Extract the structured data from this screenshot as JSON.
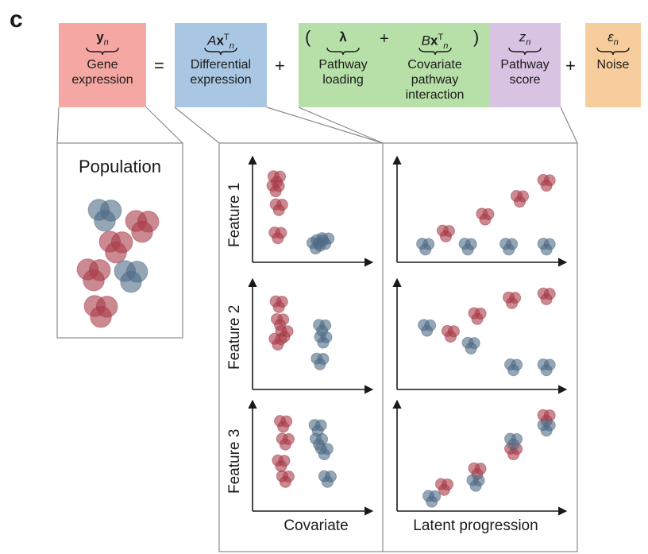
{
  "panel_label": "c",
  "equation": {
    "y": {
      "symbol": "y",
      "sub": "n",
      "label_lines": [
        "Gene",
        "expression"
      ],
      "color": "#f4a7a3"
    },
    "differential": {
      "symbol_pre": "A",
      "symbol": "x",
      "sup": "T",
      "sub": "n",
      "label_lines": [
        "Differential",
        "expression"
      ],
      "color": "#a9c7e3"
    },
    "pathway_loading": {
      "symbol": "λ",
      "label_lines": [
        "Pathway",
        "loading"
      ],
      "color": "#b7e0a8"
    },
    "covariate_interaction": {
      "symbol_pre": "B",
      "symbol": "x",
      "sup": "T",
      "sub": "n",
      "label_lines": [
        "Covariate",
        "pathway",
        "interaction"
      ],
      "color": "#b7e0a8"
    },
    "pathway_score": {
      "symbol": "z",
      "sub": "n",
      "label_lines": [
        "Pathway",
        "score"
      ],
      "color": "#d9c3e3"
    },
    "noise": {
      "symbol": "ε",
      "sub": "n",
      "label_lines": [
        "Noise"
      ],
      "color": "#f8cd9d"
    },
    "operators": {
      "equals": "=",
      "plus": "+",
      "open_paren": "(",
      "close_paren": ")"
    }
  },
  "population": {
    "title": "Population"
  },
  "plots": {
    "feature_labels": [
      "Feature 1",
      "Feature 2",
      "Feature 3"
    ],
    "x_label_left": "Covariate",
    "x_label_right": "Latent progression"
  },
  "colors": {
    "red_cell": "#a83a47",
    "blue_cell": "#4f6b85",
    "frame": "#8a8a8a"
  },
  "chart_data": [
    {
      "type": "scatter",
      "xlabel": "Covariate",
      "ylabel": "Feature 1",
      "series": [
        {
          "points": [
            [
              0.18,
              0.84
            ],
            [
              0.17,
              0.74
            ],
            [
              0.2,
              0.54
            ],
            [
              0.19,
              0.24
            ]
          ]
        },
        {
          "points": [
            [
              0.58,
              0.16
            ],
            [
              0.63,
              0.18
            ],
            [
              0.54,
              0.13
            ]
          ]
        }
      ]
    },
    {
      "type": "scatter",
      "xlabel": "Covariate",
      "ylabel": "Feature 2",
      "series": [
        {
          "points": [
            [
              0.2,
              0.82
            ],
            [
              0.21,
              0.64
            ],
            [
              0.25,
              0.52
            ],
            [
              0.19,
              0.44
            ]
          ]
        },
        {
          "points": [
            [
              0.6,
              0.58
            ],
            [
              0.61,
              0.46
            ],
            [
              0.58,
              0.24
            ]
          ]
        }
      ]
    },
    {
      "type": "scatter",
      "xlabel": "Covariate",
      "ylabel": "Feature 3",
      "series": [
        {
          "points": [
            [
              0.24,
              0.84
            ],
            [
              0.26,
              0.66
            ],
            [
              0.22,
              0.44
            ],
            [
              0.26,
              0.28
            ]
          ]
        },
        {
          "points": [
            [
              0.56,
              0.8
            ],
            [
              0.57,
              0.66
            ],
            [
              0.62,
              0.56
            ],
            [
              0.65,
              0.28
            ]
          ]
        }
      ]
    },
    {
      "type": "scatter",
      "xlabel": "Latent progression",
      "ylabel": "Feature 1",
      "series": [
        {
          "points": [
            [
              0.28,
              0.26
            ],
            [
              0.53,
              0.44
            ],
            [
              0.75,
              0.63
            ],
            [
              0.92,
              0.8
            ]
          ]
        },
        {
          "points": [
            [
              0.15,
              0.12
            ],
            [
              0.42,
              0.12
            ],
            [
              0.68,
              0.12
            ],
            [
              0.92,
              0.12
            ]
          ]
        }
      ]
    },
    {
      "type": "scatter",
      "xlabel": "Latent progression",
      "ylabel": "Feature 2",
      "series": [
        {
          "points": [
            [
              0.31,
              0.52
            ],
            [
              0.48,
              0.7
            ],
            [
              0.7,
              0.86
            ],
            [
              0.92,
              0.9
            ]
          ]
        },
        {
          "points": [
            [
              0.16,
              0.58
            ],
            [
              0.44,
              0.4
            ],
            [
              0.71,
              0.18
            ],
            [
              0.92,
              0.18
            ]
          ]
        }
      ]
    },
    {
      "type": "scatter",
      "xlabel": "Latent progression",
      "ylabel": "Feature 3",
      "series": [
        {
          "points": [
            [
              0.27,
              0.2
            ],
            [
              0.48,
              0.36
            ],
            [
              0.71,
              0.56
            ],
            [
              0.92,
              0.9
            ]
          ]
        },
        {
          "points": [
            [
              0.19,
              0.08
            ],
            [
              0.47,
              0.24
            ],
            [
              0.71,
              0.66
            ],
            [
              0.92,
              0.8
            ]
          ]
        }
      ]
    }
  ]
}
